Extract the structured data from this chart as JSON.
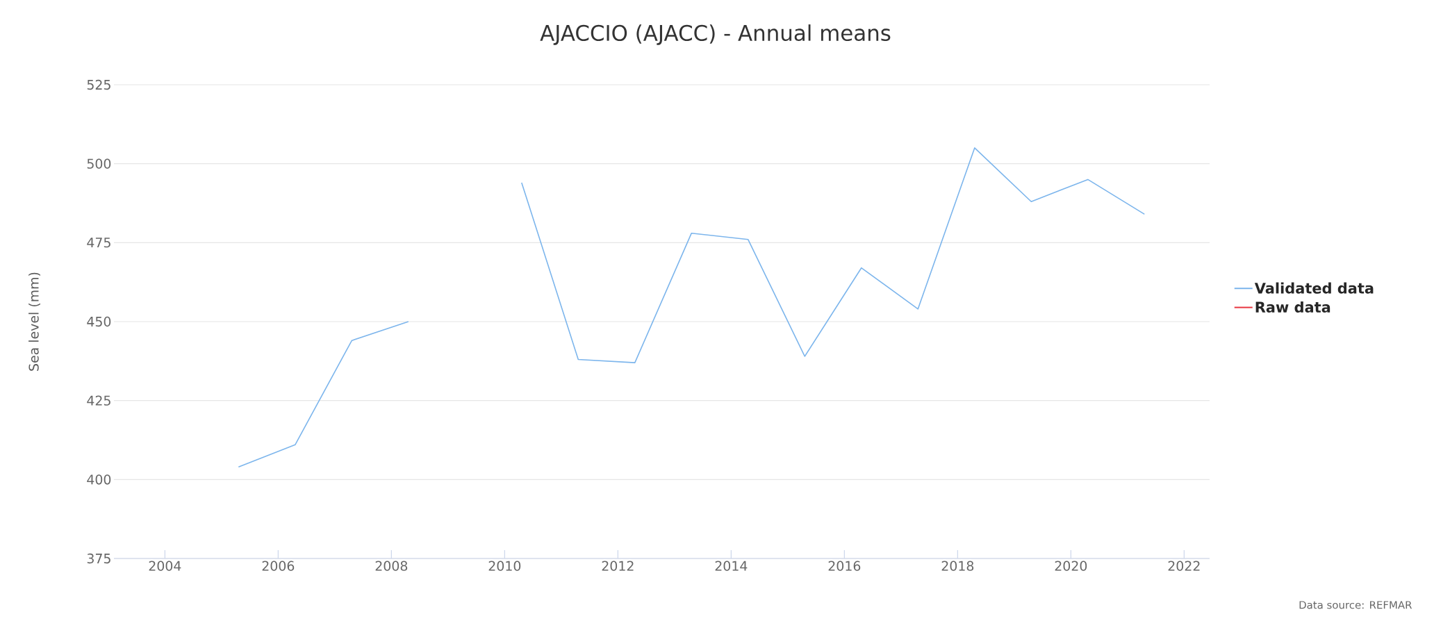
{
  "chart_data": {
    "type": "line",
    "title": "AJACCIO (AJACC) - Annual means",
    "ylabel": "Sea level (mm)",
    "x": [
      2005.3,
      2006.3,
      2007.3,
      2008.3,
      2009.3,
      2010.3,
      2011.3,
      2012.3,
      2013.3,
      2014.3,
      2015.3,
      2016.3,
      2017.3,
      2018.3,
      2019.3,
      2020.3,
      2021.3
    ],
    "series": [
      {
        "name": "Validated data",
        "color": "#7cb5ec",
        "values": [
          404,
          411,
          444,
          450,
          null,
          494,
          438,
          437,
          478,
          476,
          439,
          467,
          454,
          505,
          488,
          495,
          484
        ]
      },
      {
        "name": "Raw data",
        "color": "#e8343f",
        "values": [
          null,
          null,
          null,
          null,
          null,
          null,
          null,
          null,
          null,
          null,
          null,
          null,
          null,
          null,
          null,
          null,
          null
        ]
      }
    ],
    "xlim": [
      2003.1,
      2022.45
    ],
    "xticks": [
      2004,
      2006,
      2008,
      2010,
      2012,
      2014,
      2016,
      2018,
      2020,
      2022
    ],
    "ylim": [
      375,
      525
    ],
    "yticks": [
      375,
      400,
      425,
      450,
      475,
      500,
      525
    ],
    "grid": "y",
    "legend": "right",
    "marker": "none",
    "line_style": "solid",
    "annotations": [
      "Data source: REFMAR"
    ]
  }
}
